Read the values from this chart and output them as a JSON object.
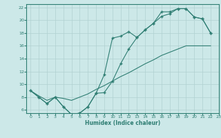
{
  "xlabel": "Humidex (Indice chaleur)",
  "bg_color": "#cce8e8",
  "line_color": "#2e7d72",
  "grid_color": "#b0d0d0",
  "xlim": [
    -0.5,
    23
  ],
  "ylim": [
    5.5,
    22.5
  ],
  "xticks": [
    0,
    1,
    2,
    3,
    4,
    5,
    6,
    7,
    8,
    9,
    10,
    11,
    12,
    13,
    14,
    15,
    16,
    17,
    18,
    19,
    20,
    21,
    22,
    23
  ],
  "yticks": [
    6,
    8,
    10,
    12,
    14,
    16,
    18,
    20,
    22
  ],
  "line1_x": [
    0,
    1,
    2,
    3,
    4,
    5,
    6,
    7,
    8,
    9,
    10,
    11,
    12,
    13,
    14,
    15,
    16,
    17,
    18,
    19,
    20,
    21,
    22
  ],
  "line1_y": [
    9.0,
    8.0,
    7.0,
    8.0,
    6.5,
    5.3,
    5.5,
    6.5,
    8.6,
    11.5,
    17.2,
    17.5,
    18.2,
    17.3,
    18.5,
    19.5,
    21.3,
    21.3,
    21.8,
    21.8,
    20.5,
    20.2,
    18.0
  ],
  "line2_x": [
    0,
    1,
    2,
    3,
    4,
    5,
    6,
    7,
    8,
    9,
    10,
    11,
    12,
    13,
    14,
    15,
    16,
    17,
    18,
    19,
    20,
    21,
    22
  ],
  "line2_y": [
    9.0,
    8.0,
    7.0,
    8.0,
    6.5,
    5.3,
    5.5,
    6.5,
    8.6,
    8.7,
    10.5,
    13.2,
    15.5,
    17.3,
    18.5,
    19.5,
    20.6,
    21.0,
    21.8,
    21.8,
    20.5,
    20.2,
    18.0
  ],
  "line3_x": [
    0,
    1,
    2,
    3,
    4,
    5,
    6,
    7,
    8,
    9,
    10,
    11,
    12,
    13,
    14,
    15,
    16,
    17,
    18,
    19,
    20,
    21,
    22
  ],
  "line3_y": [
    9.0,
    8.2,
    7.5,
    8.0,
    7.8,
    7.5,
    8.0,
    8.5,
    9.2,
    9.8,
    10.5,
    11.2,
    11.8,
    12.5,
    13.2,
    13.8,
    14.5,
    15.0,
    15.5,
    16.0,
    16.0,
    16.0,
    16.0
  ]
}
